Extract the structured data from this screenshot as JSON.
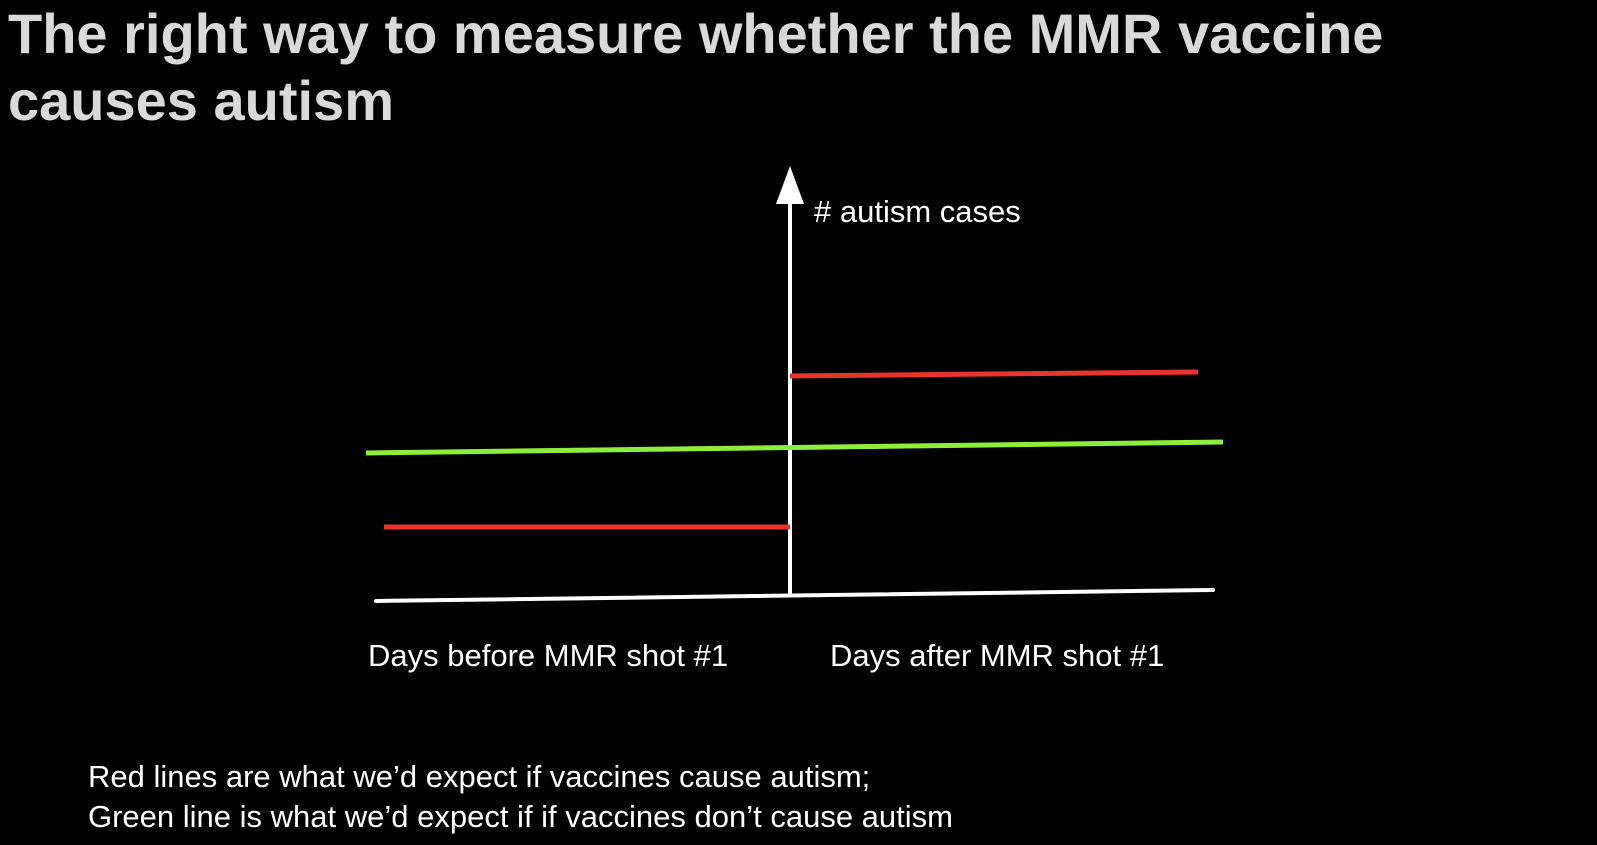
{
  "title": "The right way to measure whether the MMR vaccine causes autism",
  "diagram": {
    "y_axis_label": "# autism cases",
    "x_label_before": "Days before MMR shot #1",
    "x_label_after": "Days after MMR shot #1",
    "colors": {
      "axis": "#ffffff",
      "red_line": "#e8352c",
      "green_line": "#8eee3c",
      "title": "#d9d9d9",
      "background": "#000000"
    },
    "icons": [
      "arrow-up-icon"
    ]
  },
  "caption": {
    "line1": "Red lines are what we’d expect if vaccines cause autism;",
    "line2": "Green line is what we’d expect if if vaccines don’t cause autism"
  }
}
